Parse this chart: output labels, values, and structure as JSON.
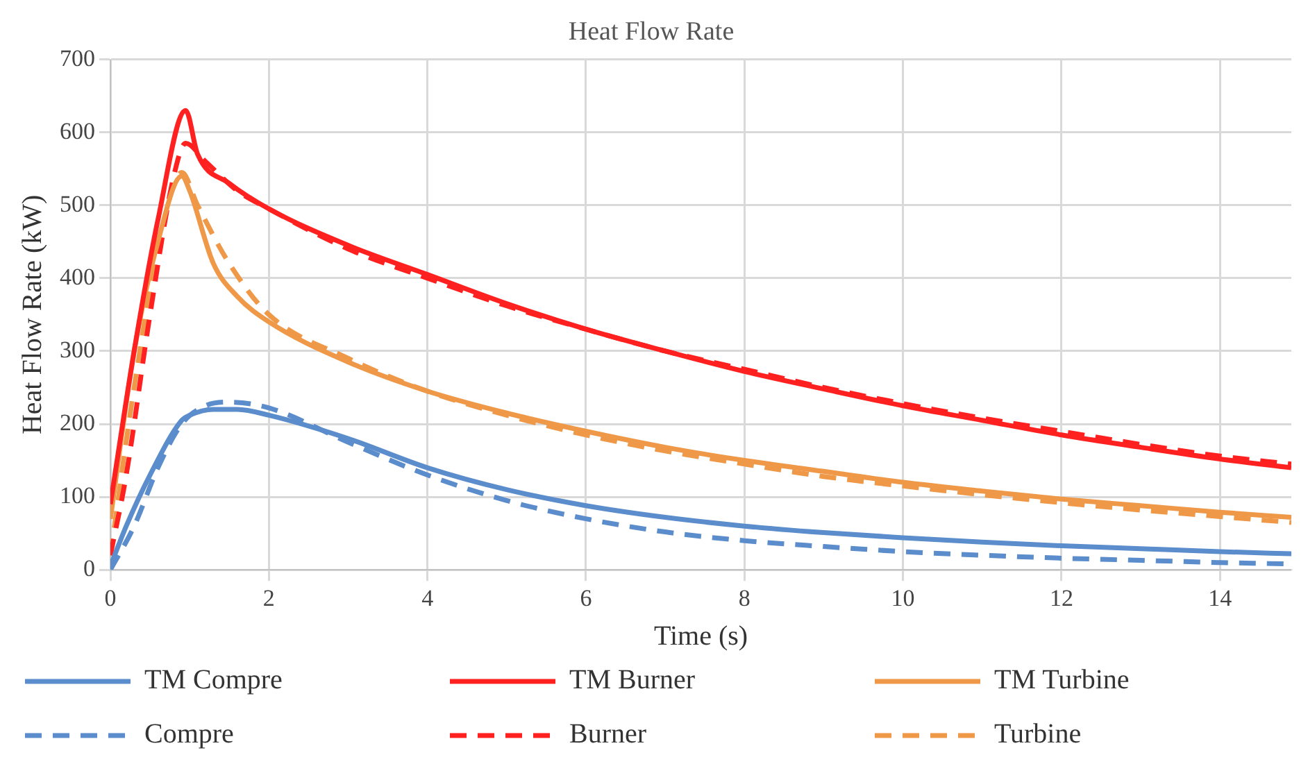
{
  "chart_data": {
    "type": "line",
    "title": "Heat Flow Rate",
    "xlabel": "Time (s)",
    "ylabel": "Heat Flow Rate (kW)",
    "xlim": [
      0,
      14.9
    ],
    "xticks": [
      0,
      2,
      4,
      6,
      8,
      10,
      12,
      14
    ],
    "ylim": [
      0,
      700
    ],
    "yticks": [
      0,
      100,
      200,
      300,
      400,
      500,
      600,
      700
    ],
    "grid": true,
    "legend": "bottom",
    "marker": "none",
    "series": [
      {
        "name": "TM Compre",
        "color": "#5b8ccc",
        "line_style": "solid",
        "x": [
          0,
          0.2,
          0.5,
          0.9,
          1,
          1.3,
          1.6,
          2,
          3,
          4,
          5,
          6,
          7,
          8,
          9,
          10,
          11,
          12,
          13,
          14,
          14.9
        ],
        "values": [
          5,
          60,
          130,
          205,
          212,
          220,
          220,
          212,
          180,
          140,
          110,
          88,
          72,
          60,
          51,
          44,
          38,
          33,
          29,
          25,
          22
        ]
      },
      {
        "name": "TM Burner",
        "color": "#ff2020",
        "line_style": "solid",
        "x": [
          0,
          0.3,
          0.6,
          0.95,
          1.1,
          1.5,
          2,
          3,
          4,
          5,
          6,
          7,
          8,
          9,
          10,
          11,
          12,
          13,
          14,
          14.9
        ],
        "values": [
          90,
          300,
          480,
          630,
          570,
          530,
          495,
          445,
          405,
          365,
          330,
          300,
          272,
          248,
          225,
          205,
          185,
          168,
          152,
          140
        ]
      },
      {
        "name": "TM Turbine",
        "color": "#ee9848",
        "line_style": "solid",
        "x": [
          0,
          0.3,
          0.6,
          0.9,
          1,
          1.3,
          1.6,
          2,
          3,
          4,
          5,
          6,
          7,
          8,
          9,
          10,
          11,
          12,
          13,
          14,
          14.9
        ],
        "values": [
          70,
          300,
          450,
          540,
          520,
          420,
          375,
          340,
          285,
          245,
          215,
          190,
          168,
          150,
          135,
          120,
          108,
          97,
          88,
          79,
          72
        ]
      },
      {
        "name": "Compre",
        "color": "#5b8ccc",
        "line_style": "dashed",
        "x": [
          0,
          0.3,
          0.6,
          0.9,
          1.2,
          1.5,
          2,
          3,
          4,
          5,
          6,
          7,
          8,
          9,
          10,
          11,
          12,
          13,
          14,
          14.9
        ],
        "values": [
          0,
          60,
          140,
          200,
          225,
          230,
          222,
          175,
          130,
          95,
          70,
          52,
          40,
          32,
          25,
          20,
          16,
          13,
          10,
          8
        ]
      },
      {
        "name": "Burner",
        "color": "#ff2020",
        "line_style": "dashed",
        "x": [
          0,
          0.2,
          0.5,
          0.8,
          0.95,
          1.2,
          1.6,
          2,
          3,
          4,
          5,
          6,
          7,
          8,
          9,
          10,
          11,
          12,
          13,
          14,
          14.9
        ],
        "values": [
          20,
          130,
          350,
          540,
          585,
          560,
          520,
          495,
          440,
          400,
          362,
          330,
          300,
          275,
          250,
          228,
          208,
          190,
          172,
          156,
          145
        ]
      },
      {
        "name": "Turbine",
        "color": "#ee9848",
        "line_style": "dashed",
        "x": [
          0,
          0.3,
          0.6,
          0.9,
          1.1,
          1.5,
          2,
          3,
          4,
          5,
          6,
          7,
          8,
          9,
          10,
          11,
          12,
          13,
          14,
          14.9
        ],
        "values": [
          20,
          250,
          440,
          545,
          500,
          420,
          350,
          290,
          245,
          212,
          185,
          163,
          145,
          128,
          115,
          103,
          92,
          82,
          73,
          65
        ]
      }
    ]
  }
}
